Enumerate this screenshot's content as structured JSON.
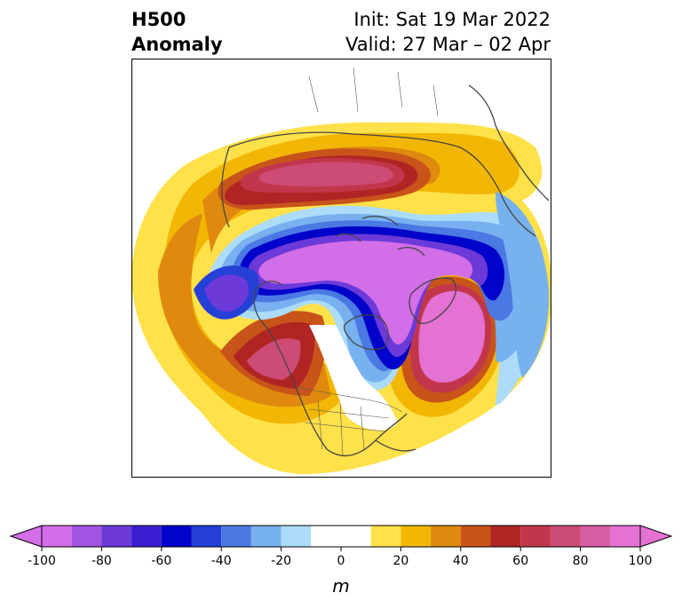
{
  "title": {
    "left_line1": "H500",
    "left_line2": "Anomaly",
    "right_line1": "Init: Sat 19 Mar 2022",
    "right_line2": "Valid: 27 Mar – 02 Apr"
  },
  "colorbar": {
    "units": "m",
    "ticks": [
      "-100",
      "-80",
      "-60",
      "-40",
      "-20",
      "0",
      "20",
      "40",
      "60",
      "80",
      "100"
    ],
    "bins": [
      {
        "lo": -100,
        "hi": -90,
        "color": "#d36ee8"
      },
      {
        "lo": -90,
        "hi": -80,
        "color": "#a154e0"
      },
      {
        "lo": -80,
        "hi": -70,
        "color": "#6c3ad9"
      },
      {
        "lo": -70,
        "hi": -60,
        "color": "#3a1fd0"
      },
      {
        "lo": -60,
        "hi": -50,
        "color": "#0003c9"
      },
      {
        "lo": -50,
        "hi": -40,
        "color": "#2540d6"
      },
      {
        "lo": -40,
        "hi": -30,
        "color": "#4a79e4"
      },
      {
        "lo": -30,
        "hi": -20,
        "color": "#77b1ef"
      },
      {
        "lo": -20,
        "hi": -10,
        "color": "#acdcfa"
      },
      {
        "lo": -10,
        "hi": 10,
        "color": "#ffffff"
      },
      {
        "lo": 10,
        "hi": 20,
        "color": "#ffe14a"
      },
      {
        "lo": 20,
        "hi": 30,
        "color": "#f2b705"
      },
      {
        "lo": 30,
        "hi": 40,
        "color": "#df8a0e"
      },
      {
        "lo": 40,
        "hi": 50,
        "color": "#c8541a"
      },
      {
        "lo": 50,
        "hi": 60,
        "color": "#b02523"
      },
      {
        "lo": 60,
        "hi": 70,
        "color": "#c2364b"
      },
      {
        "lo": 70,
        "hi": 80,
        "color": "#cc4c76"
      },
      {
        "lo": 80,
        "hi": 90,
        "color": "#d75ea2"
      },
      {
        "lo": 90,
        "hi": 100,
        "color": "#e472d2"
      }
    ]
  },
  "map": {
    "projection": "polar-stereographic",
    "anomaly_centers": [
      {
        "name": "Arctic/Canada low",
        "value": -100
      },
      {
        "name": "East Pacific/NW Atlantic low",
        "value": -60
      },
      {
        "name": "Northern Eurasia high",
        "value": 80
      },
      {
        "name": "North Atlantic high",
        "value": 100
      },
      {
        "name": "Western North America high",
        "value": 70
      },
      {
        "name": "Europe low",
        "value": -40
      }
    ]
  }
}
